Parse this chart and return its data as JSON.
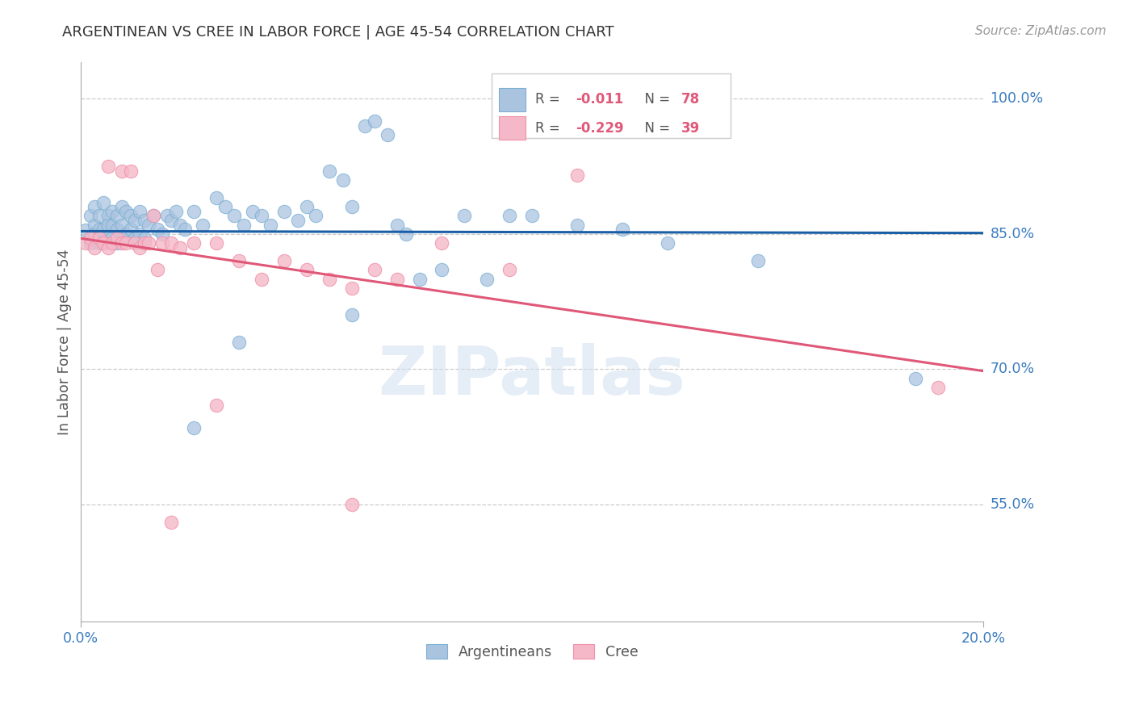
{
  "title": "ARGENTINEAN VS CREE IN LABOR FORCE | AGE 45-54 CORRELATION CHART",
  "source": "Source: ZipAtlas.com",
  "ylabel": "In Labor Force | Age 45-54",
  "xlim": [
    0.0,
    0.2
  ],
  "ylim": [
    0.42,
    1.04
  ],
  "ytick_vals": [
    0.55,
    0.7,
    0.85,
    1.0
  ],
  "ytick_labels": [
    "55.0%",
    "70.0%",
    "85.0%",
    "100.0%"
  ],
  "blue_r": -0.011,
  "blue_n": 78,
  "pink_r": -0.229,
  "pink_n": 39,
  "blue_fill": "#aac4e0",
  "blue_edge": "#7bafd4",
  "pink_fill": "#f5b8c8",
  "pink_edge": "#f090a8",
  "blue_line_color": "#1a5fa6",
  "pink_line_color": "#e05878",
  "tick_color_right": "#3a7bbf",
  "tick_color_bottom": "#3a7bbf",
  "grid_color": "#cccccc",
  "axis_color": "#aaaaaa",
  "title_color": "#333333",
  "ylabel_color": "#555555",
  "background_color": "#ffffff",
  "blue_line_y0": 0.853,
  "blue_line_y1": 0.851,
  "pink_line_y0": 0.845,
  "pink_line_y1": 0.698,
  "blue_points_x": [
    0.001,
    0.002,
    0.002,
    0.003,
    0.003,
    0.003,
    0.004,
    0.004,
    0.004,
    0.005,
    0.005,
    0.005,
    0.006,
    0.006,
    0.006,
    0.007,
    0.007,
    0.007,
    0.008,
    0.008,
    0.008,
    0.009,
    0.009,
    0.009,
    0.01,
    0.01,
    0.011,
    0.011,
    0.012,
    0.012,
    0.013,
    0.013,
    0.014,
    0.014,
    0.015,
    0.016,
    0.017,
    0.018,
    0.019,
    0.02,
    0.021,
    0.022,
    0.023,
    0.025,
    0.027,
    0.03,
    0.032,
    0.034,
    0.036,
    0.038,
    0.04,
    0.042,
    0.045,
    0.048,
    0.05,
    0.052,
    0.055,
    0.058,
    0.06,
    0.063,
    0.065,
    0.068,
    0.07,
    0.072,
    0.075,
    0.08,
    0.085,
    0.09,
    0.095,
    0.1,
    0.11,
    0.12,
    0.13,
    0.15,
    0.185,
    0.06,
    0.035,
    0.025
  ],
  "blue_points_y": [
    0.854,
    0.87,
    0.84,
    0.86,
    0.85,
    0.88,
    0.855,
    0.87,
    0.84,
    0.885,
    0.855,
    0.84,
    0.87,
    0.86,
    0.845,
    0.875,
    0.86,
    0.845,
    0.87,
    0.855,
    0.84,
    0.88,
    0.86,
    0.845,
    0.875,
    0.85,
    0.87,
    0.855,
    0.865,
    0.845,
    0.875,
    0.85,
    0.865,
    0.845,
    0.86,
    0.87,
    0.855,
    0.85,
    0.87,
    0.865,
    0.875,
    0.86,
    0.855,
    0.875,
    0.86,
    0.89,
    0.88,
    0.87,
    0.86,
    0.875,
    0.87,
    0.86,
    0.875,
    0.865,
    0.88,
    0.87,
    0.92,
    0.91,
    0.88,
    0.97,
    0.975,
    0.96,
    0.86,
    0.85,
    0.8,
    0.81,
    0.87,
    0.8,
    0.87,
    0.87,
    0.86,
    0.855,
    0.84,
    0.82,
    0.69,
    0.76,
    0.73,
    0.635
  ],
  "pink_points_x": [
    0.001,
    0.002,
    0.003,
    0.004,
    0.005,
    0.006,
    0.006,
    0.007,
    0.008,
    0.009,
    0.009,
    0.01,
    0.011,
    0.012,
    0.013,
    0.014,
    0.015,
    0.016,
    0.017,
    0.018,
    0.02,
    0.022,
    0.025,
    0.03,
    0.035,
    0.04,
    0.045,
    0.05,
    0.055,
    0.06,
    0.065,
    0.07,
    0.08,
    0.095,
    0.11,
    0.06,
    0.03,
    0.02,
    0.19
  ],
  "pink_points_y": [
    0.84,
    0.845,
    0.835,
    0.845,
    0.84,
    0.835,
    0.925,
    0.84,
    0.845,
    0.84,
    0.92,
    0.84,
    0.92,
    0.84,
    0.835,
    0.84,
    0.84,
    0.87,
    0.81,
    0.84,
    0.84,
    0.835,
    0.84,
    0.84,
    0.82,
    0.8,
    0.82,
    0.81,
    0.8,
    0.79,
    0.81,
    0.8,
    0.84,
    0.81,
    0.915,
    0.55,
    0.66,
    0.53,
    0.68
  ],
  "watermark_text": "ZIPatlas",
  "watermark_color": "#d0dff0",
  "watermark_alpha": 0.55
}
